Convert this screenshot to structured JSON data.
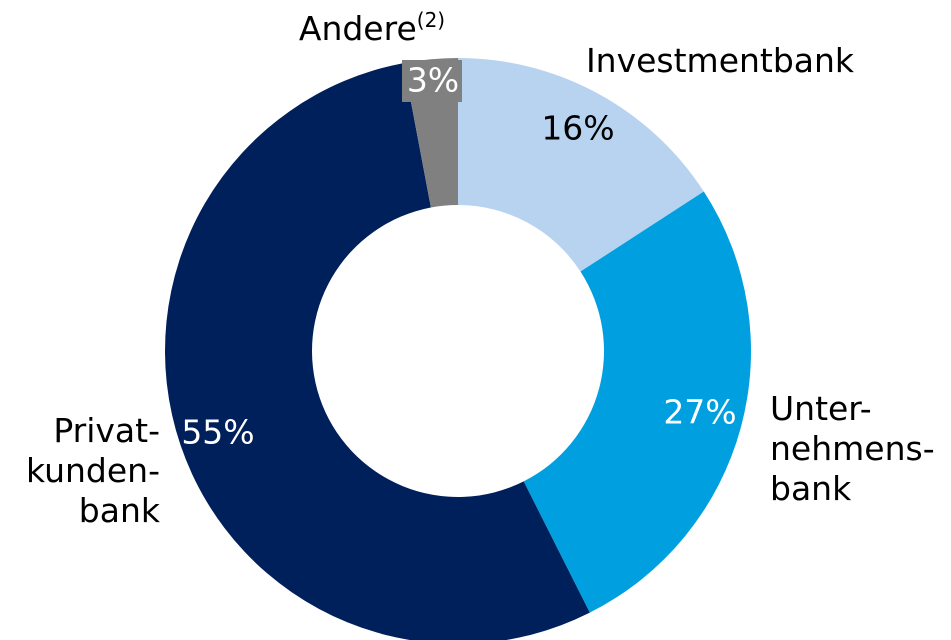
{
  "chart_data": {
    "type": "donut",
    "categories": [
      "Investmentbank",
      "Unter-\nnehmens-\nbank",
      "Privat-\nkunden-\nbank",
      "Andere"
    ],
    "category_notes": [
      null,
      null,
      null,
      "(2)"
    ],
    "values": [
      16,
      27,
      55,
      3
    ],
    "value_labels": [
      "16%",
      "27%",
      "55%",
      "3%"
    ],
    "colors": [
      "#b8d3f0",
      "#00a0e0",
      "#00205b",
      "#808080"
    ]
  }
}
